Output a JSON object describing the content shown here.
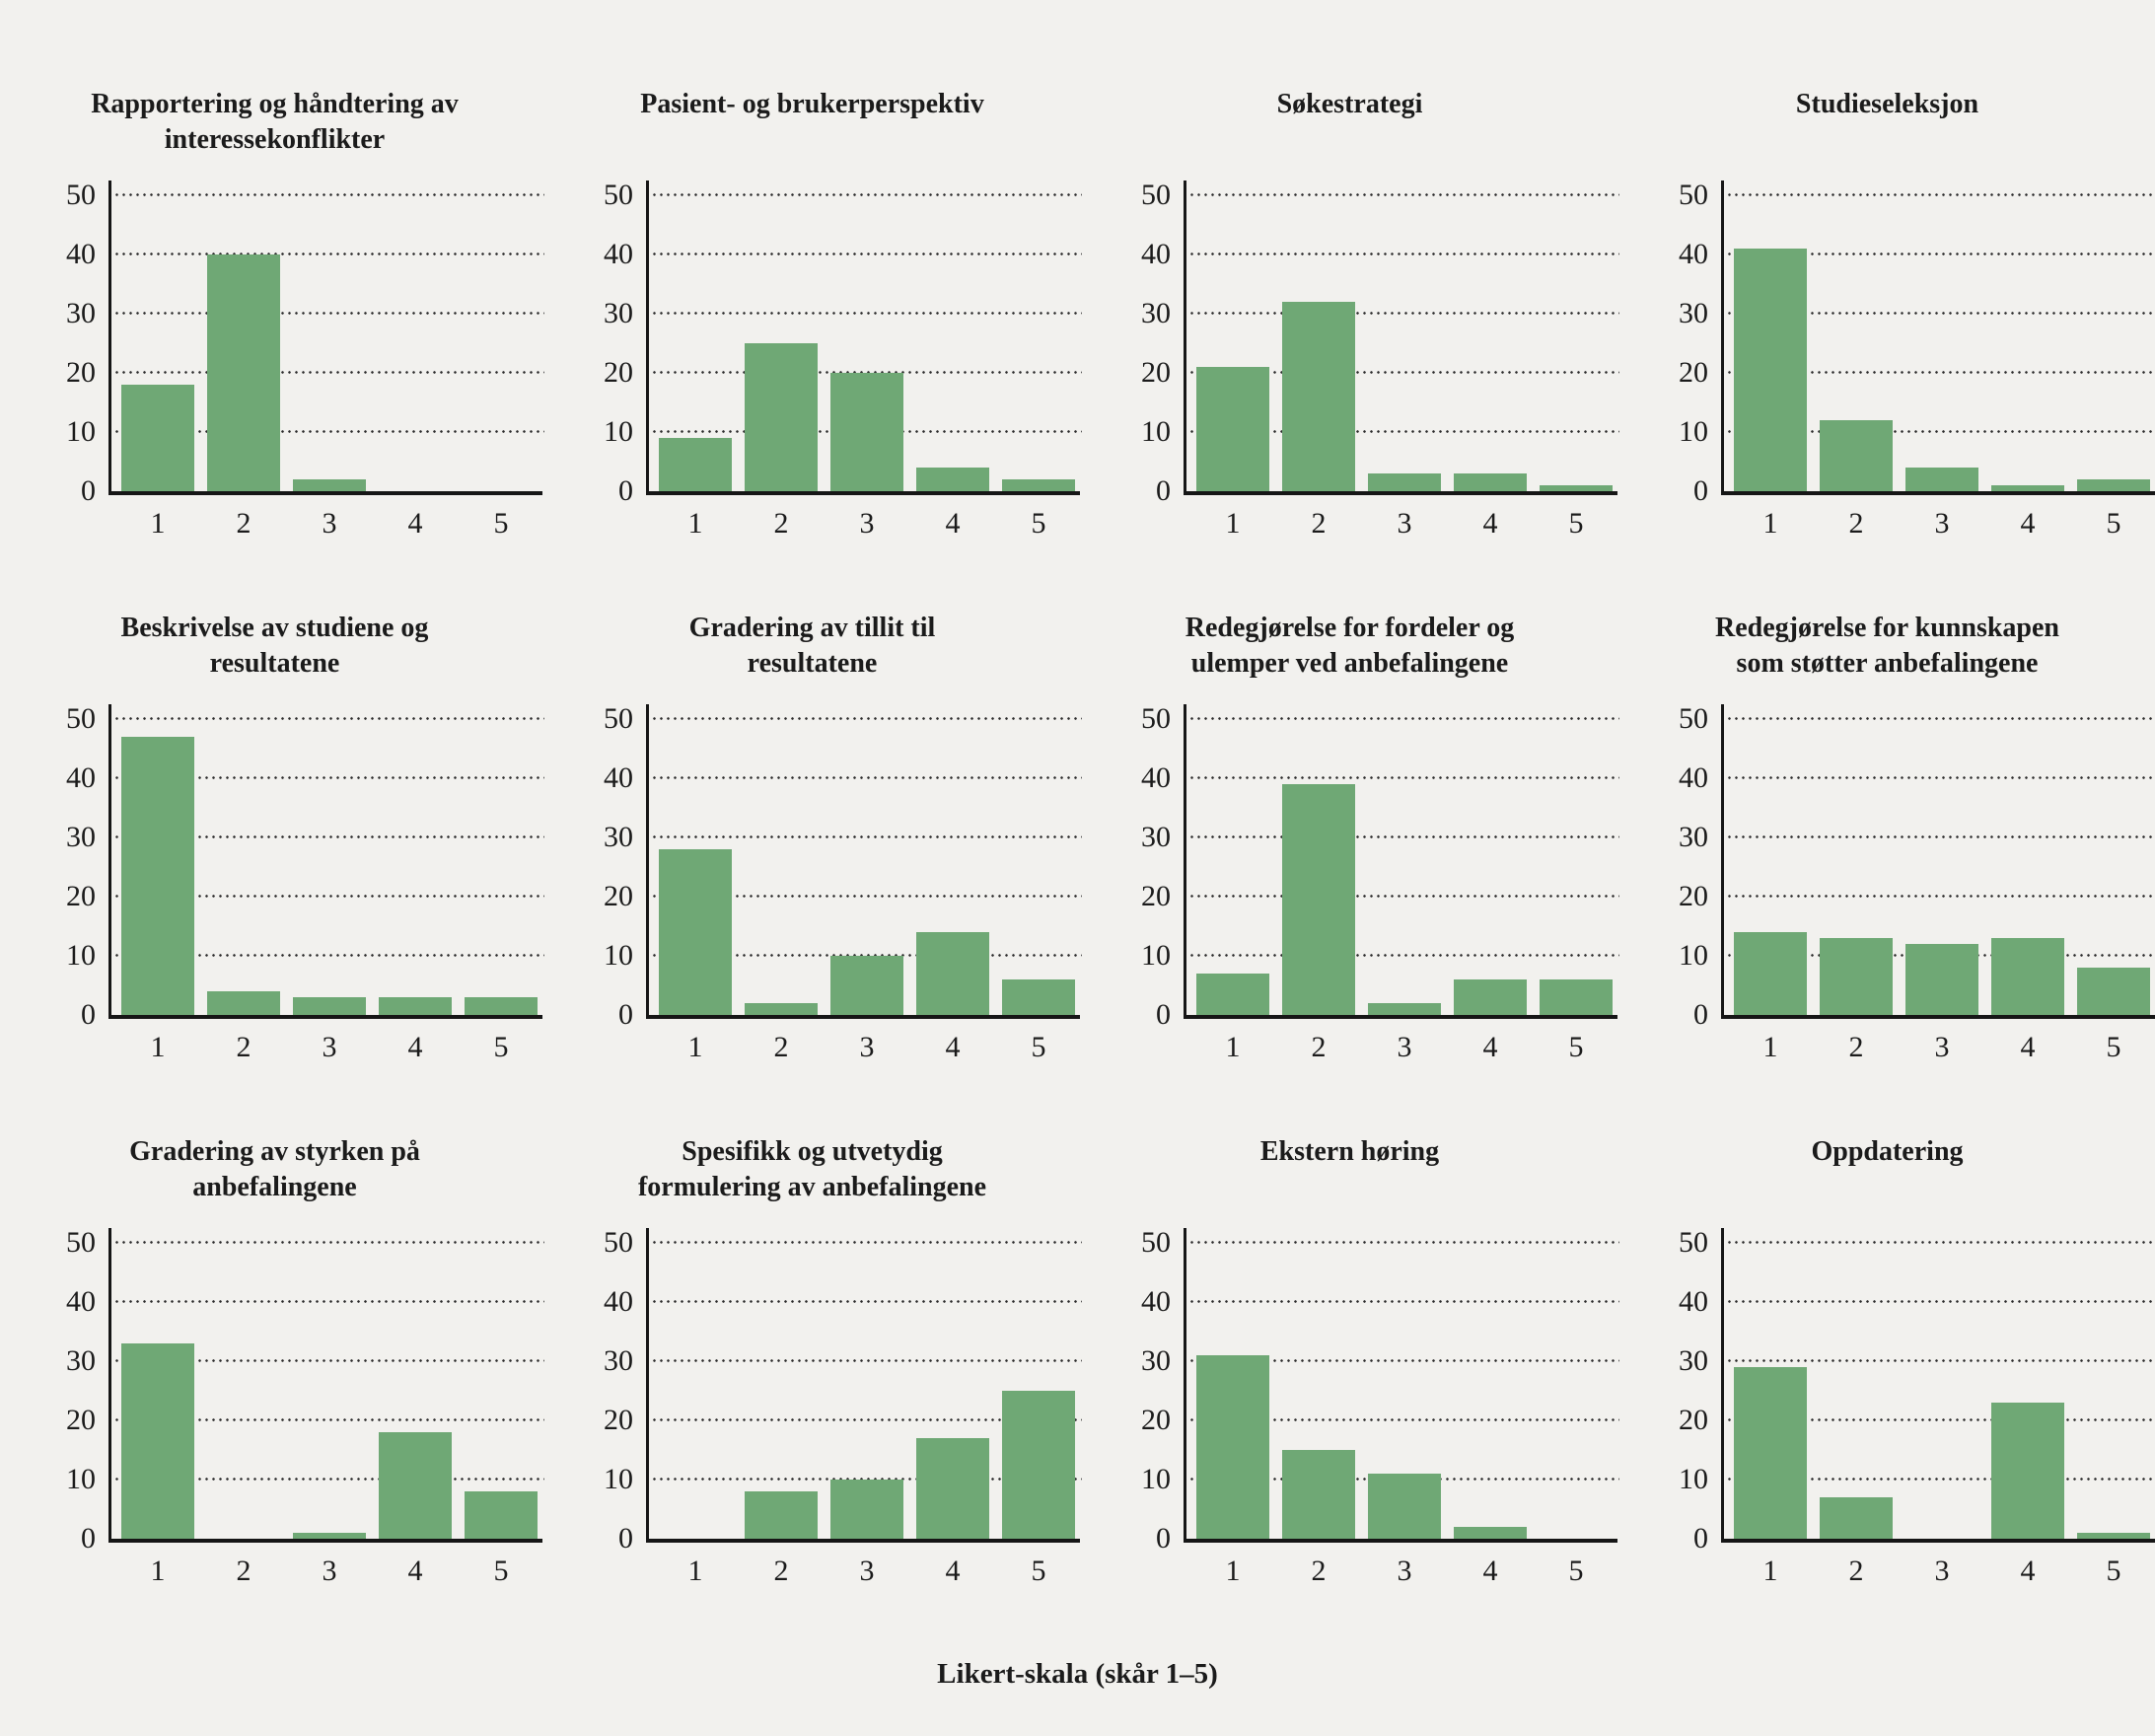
{
  "figure": {
    "xlabel": "Likert-skala (skår 1–5)",
    "colors": {
      "background": "#f2f1ee",
      "bar": "#6fa875",
      "axis": "#161616",
      "grid_dots": "#2a2a2a",
      "text": "#1b1b1b"
    }
  },
  "chart_data": [
    {
      "type": "bar",
      "title": "Rapportering og håndtering av interessekonflikter",
      "title_lines": [
        "Rapportering og håndtering av",
        "interessekonflikter"
      ],
      "categories": [
        "1",
        "2",
        "3",
        "4",
        "5"
      ],
      "values": [
        18,
        40,
        2,
        0,
        0
      ],
      "yticks": [
        0,
        10,
        20,
        30,
        40,
        50
      ],
      "ylim": [
        0,
        52.5
      ],
      "grid": "dotted-horizontal"
    },
    {
      "type": "bar",
      "title": "Pasient- og brukerperspektiv",
      "title_lines": [
        "Pasient- og brukerperspektiv"
      ],
      "categories": [
        "1",
        "2",
        "3",
        "4",
        "5"
      ],
      "values": [
        9,
        25,
        20,
        4,
        2
      ],
      "yticks": [
        0,
        10,
        20,
        30,
        40,
        50
      ],
      "ylim": [
        0,
        52.5
      ],
      "grid": "dotted-horizontal"
    },
    {
      "type": "bar",
      "title": "Søkestrategi",
      "title_lines": [
        "Søkestrategi"
      ],
      "categories": [
        "1",
        "2",
        "3",
        "4",
        "5"
      ],
      "values": [
        21,
        32,
        3,
        3,
        1
      ],
      "yticks": [
        0,
        10,
        20,
        30,
        40,
        50
      ],
      "ylim": [
        0,
        52.5
      ],
      "grid": "dotted-horizontal"
    },
    {
      "type": "bar",
      "title": "Studieseleksjon",
      "title_lines": [
        "Studieseleksjon"
      ],
      "categories": [
        "1",
        "2",
        "3",
        "4",
        "5"
      ],
      "values": [
        41,
        12,
        4,
        1,
        2
      ],
      "yticks": [
        0,
        10,
        20,
        30,
        40,
        50
      ],
      "ylim": [
        0,
        52.5
      ],
      "grid": "dotted-horizontal"
    },
    {
      "type": "bar",
      "title": "Beskrivelse av studiene og resultatene",
      "title_lines": [
        "Beskrivelse av studiene og",
        "resultatene"
      ],
      "categories": [
        "1",
        "2",
        "3",
        "4",
        "5"
      ],
      "values": [
        47,
        4,
        3,
        3,
        3
      ],
      "yticks": [
        0,
        10,
        20,
        30,
        40,
        50
      ],
      "ylim": [
        0,
        52.5
      ],
      "grid": "dotted-horizontal"
    },
    {
      "type": "bar",
      "title": "Gradering av tillit til resultatene",
      "title_lines": [
        "Gradering av tillit til",
        "resultatene"
      ],
      "categories": [
        "1",
        "2",
        "3",
        "4",
        "5"
      ],
      "values": [
        28,
        2,
        10,
        14,
        6
      ],
      "yticks": [
        0,
        10,
        20,
        30,
        40,
        50
      ],
      "ylim": [
        0,
        52.5
      ],
      "grid": "dotted-horizontal"
    },
    {
      "type": "bar",
      "title": "Redegjørelse for fordeler og ulemper ved anbefalingene",
      "title_lines": [
        "Redegjørelse for fordeler og",
        "ulemper ved anbefalingene"
      ],
      "categories": [
        "1",
        "2",
        "3",
        "4",
        "5"
      ],
      "values": [
        7,
        39,
        2,
        6,
        6
      ],
      "yticks": [
        0,
        10,
        20,
        30,
        40,
        50
      ],
      "ylim": [
        0,
        52.5
      ],
      "grid": "dotted-horizontal"
    },
    {
      "type": "bar",
      "title": "Redegjørelse for kunnskapen som støtter anbefalingene",
      "title_lines": [
        "Redegjørelse for kunnskapen",
        "som støtter anbefalingene"
      ],
      "categories": [
        "1",
        "2",
        "3",
        "4",
        "5"
      ],
      "values": [
        14,
        13,
        12,
        13,
        8
      ],
      "yticks": [
        0,
        10,
        20,
        30,
        40,
        50
      ],
      "ylim": [
        0,
        52.5
      ],
      "grid": "dotted-horizontal"
    },
    {
      "type": "bar",
      "title": "Gradering av styrken på anbefalingene",
      "title_lines": [
        "Gradering av styrken på",
        "anbefalingene"
      ],
      "categories": [
        "1",
        "2",
        "3",
        "4",
        "5"
      ],
      "values": [
        33,
        0,
        1,
        18,
        8
      ],
      "yticks": [
        0,
        10,
        20,
        30,
        40,
        50
      ],
      "ylim": [
        0,
        52.5
      ],
      "grid": "dotted-horizontal"
    },
    {
      "type": "bar",
      "title": "Spesifikk og utvetydig formulering av anbefalingene",
      "title_lines": [
        "Spesifikk og utvetydig",
        "formulering av anbefalingene"
      ],
      "categories": [
        "1",
        "2",
        "3",
        "4",
        "5"
      ],
      "values": [
        0,
        8,
        10,
        17,
        25
      ],
      "yticks": [
        0,
        10,
        20,
        30,
        40,
        50
      ],
      "ylim": [
        0,
        52.5
      ],
      "grid": "dotted-horizontal"
    },
    {
      "type": "bar",
      "title": "Ekstern høring",
      "title_lines": [
        "Ekstern høring"
      ],
      "categories": [
        "1",
        "2",
        "3",
        "4",
        "5"
      ],
      "values": [
        31,
        15,
        11,
        2,
        0
      ],
      "yticks": [
        0,
        10,
        20,
        30,
        40,
        50
      ],
      "ylim": [
        0,
        52.5
      ],
      "grid": "dotted-horizontal"
    },
    {
      "type": "bar",
      "title": "Oppdatering",
      "title_lines": [
        "Oppdatering"
      ],
      "categories": [
        "1",
        "2",
        "3",
        "4",
        "5"
      ],
      "values": [
        29,
        7,
        0,
        23,
        1
      ],
      "yticks": [
        0,
        10,
        20,
        30,
        40,
        50
      ],
      "ylim": [
        0,
        52.5
      ],
      "grid": "dotted-horizontal"
    }
  ]
}
